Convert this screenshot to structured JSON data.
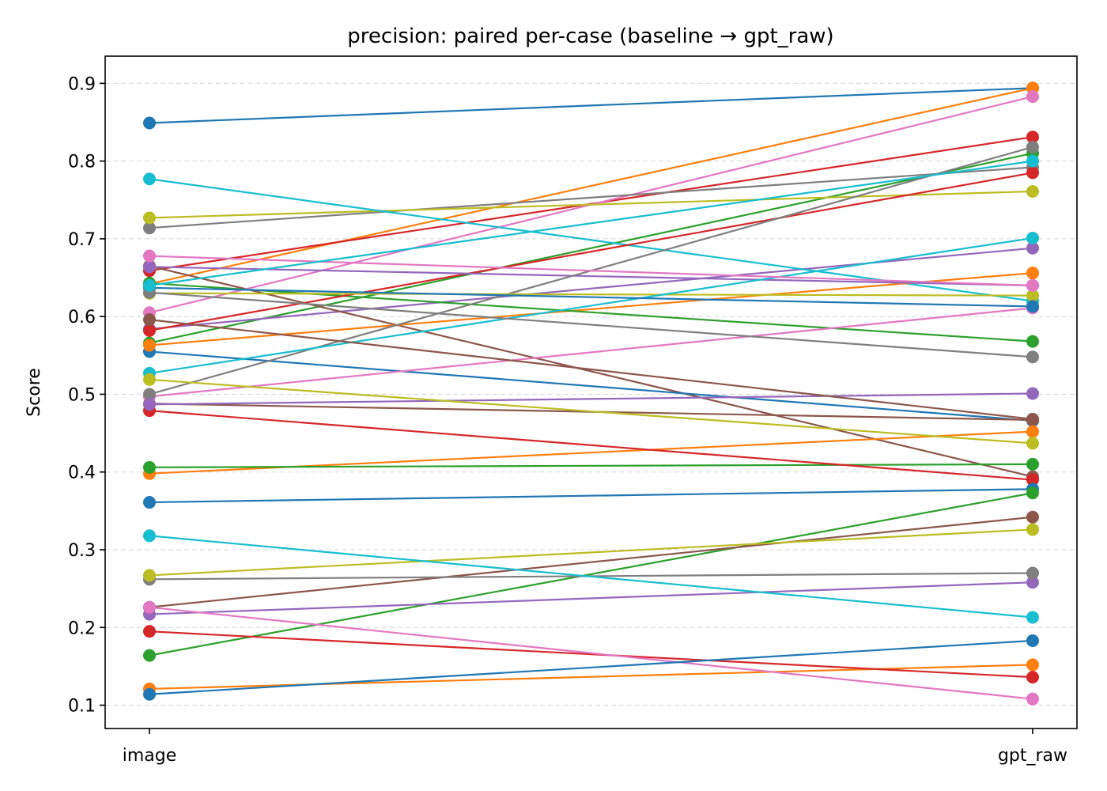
{
  "chart_data": {
    "type": "line",
    "title": "precision: paired per-case (baseline → gpt_raw)",
    "xlabel": "",
    "ylabel": "Score",
    "categories": [
      "image",
      "gpt_raw"
    ],
    "ylim": [
      0.07,
      0.935
    ],
    "yticks": [
      0.1,
      0.2,
      0.3,
      0.4,
      0.5,
      0.6,
      0.7,
      0.8,
      0.9
    ],
    "ytick_labels": [
      "0.1",
      "0.2",
      "0.3",
      "0.4",
      "0.5",
      "0.6",
      "0.7",
      "0.8",
      "0.9"
    ],
    "grid": "y-dashed",
    "series": [
      {
        "values": [
          0.849,
          0.894
        ],
        "color": "#1f77b4"
      },
      {
        "values": [
          0.642,
          0.894
        ],
        "color": "#ff7f0e"
      },
      {
        "values": [
          0.566,
          0.81
        ],
        "color": "#2ca02c"
      },
      {
        "values": [
          0.659,
          0.831
        ],
        "color": "#d62728"
      },
      {
        "values": [
          0.584,
          0.688
        ],
        "color": "#9467bd"
      },
      {
        "values": [
          0.665,
          0.394
        ],
        "color": "#8c564b"
      },
      {
        "values": [
          0.605,
          0.883
        ],
        "color": "#e377c2"
      },
      {
        "values": [
          0.714,
          0.792
        ],
        "color": "#7f7f7f"
      },
      {
        "values": [
          0.727,
          0.761
        ],
        "color": "#bcbd22"
      },
      {
        "values": [
          0.777,
          0.62
        ],
        "color": "#17becf"
      },
      {
        "values": [
          0.555,
          0.466
        ],
        "color": "#1f77b4"
      },
      {
        "values": [
          0.563,
          0.656
        ],
        "color": "#ff7f0e"
      },
      {
        "values": [
          0.643,
          0.568
        ],
        "color": "#2ca02c"
      },
      {
        "values": [
          0.582,
          0.785
        ],
        "color": "#d62728"
      },
      {
        "values": [
          0.664,
          0.64
        ],
        "color": "#9467bd"
      },
      {
        "values": [
          0.488,
          0.467
        ],
        "color": "#8c564b"
      },
      {
        "values": [
          0.497,
          0.611
        ],
        "color": "#e377c2"
      },
      {
        "values": [
          0.5,
          0.818
        ],
        "color": "#7f7f7f"
      },
      {
        "values": [
          0.63,
          0.627
        ],
        "color": "#bcbd22"
      },
      {
        "values": [
          0.527,
          0.701
        ],
        "color": "#17becf"
      },
      {
        "values": [
          0.637,
          0.613
        ],
        "color": "#1f77b4"
      },
      {
        "values": [
          0.398,
          0.452
        ],
        "color": "#ff7f0e"
      },
      {
        "values": [
          0.406,
          0.41
        ],
        "color": "#2ca02c"
      },
      {
        "values": [
          0.479,
          0.39
        ],
        "color": "#d62728"
      },
      {
        "values": [
          0.487,
          0.501
        ],
        "color": "#9467bd"
      },
      {
        "values": [
          0.596,
          0.468
        ],
        "color": "#8c564b"
      },
      {
        "values": [
          0.678,
          0.64
        ],
        "color": "#e377c2"
      },
      {
        "values": [
          0.631,
          0.548
        ],
        "color": "#7f7f7f"
      },
      {
        "values": [
          0.519,
          0.437
        ],
        "color": "#bcbd22"
      },
      {
        "values": [
          0.64,
          0.8
        ],
        "color": "#17becf"
      },
      {
        "values": [
          0.361,
          0.378
        ],
        "color": "#1f77b4"
      },
      {
        "values": [
          0.121,
          0.152
        ],
        "color": "#ff7f0e"
      },
      {
        "values": [
          0.164,
          0.373
        ],
        "color": "#2ca02c"
      },
      {
        "values": [
          0.195,
          0.136
        ],
        "color": "#d62728"
      },
      {
        "values": [
          0.217,
          0.258
        ],
        "color": "#9467bd"
      },
      {
        "values": [
          0.226,
          0.342
        ],
        "color": "#8c564b"
      },
      {
        "values": [
          0.226,
          0.108
        ],
        "color": "#e377c2"
      },
      {
        "values": [
          0.262,
          0.27
        ],
        "color": "#7f7f7f"
      },
      {
        "values": [
          0.267,
          0.326
        ],
        "color": "#bcbd22"
      },
      {
        "values": [
          0.318,
          0.213
        ],
        "color": "#17becf"
      },
      {
        "values": [
          0.114,
          0.183
        ],
        "color": "#1f77b4"
      }
    ]
  }
}
